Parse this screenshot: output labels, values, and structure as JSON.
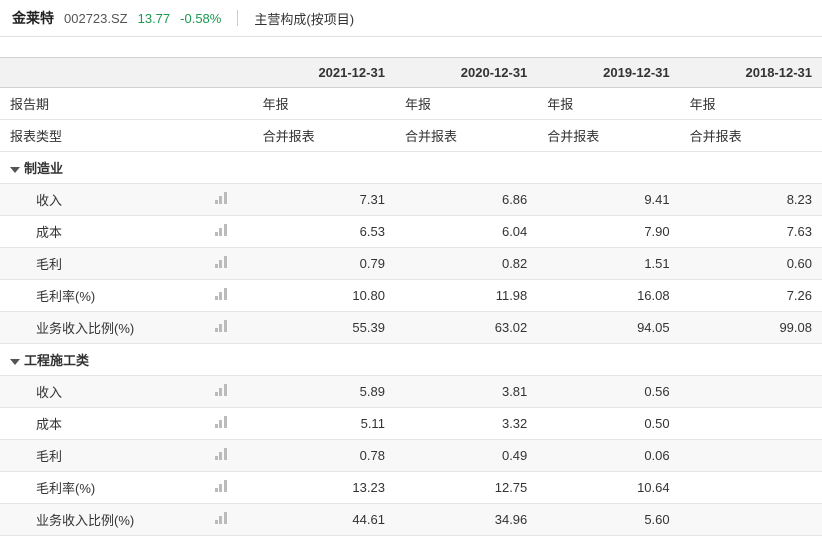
{
  "header": {
    "stock_name": "金莱特",
    "stock_code": "002723.SZ",
    "price": "13.77",
    "price_color": "#1a9850",
    "change": "-0.58%",
    "change_color": "#1a9850",
    "section_title": "主营构成(按项目)"
  },
  "table": {
    "label_header": "",
    "columns": [
      "2021-12-31",
      "2020-12-31",
      "2019-12-31",
      "2018-12-31"
    ],
    "meta_rows": [
      {
        "label": "报告期",
        "values": [
          "年报",
          "年报",
          "年报",
          "年报"
        ]
      },
      {
        "label": "报表类型",
        "values": [
          "合并报表",
          "合并报表",
          "合并报表",
          "合并报表"
        ]
      }
    ],
    "groups": [
      {
        "name": "制造业",
        "metrics": [
          {
            "label": "收入",
            "values": [
              "7.31",
              "6.86",
              "9.41",
              "8.23"
            ]
          },
          {
            "label": "成本",
            "values": [
              "6.53",
              "6.04",
              "7.90",
              "7.63"
            ]
          },
          {
            "label": "毛利",
            "values": [
              "0.79",
              "0.82",
              "1.51",
              "0.60"
            ]
          },
          {
            "label": "毛利率(%)",
            "values": [
              "10.80",
              "11.98",
              "16.08",
              "7.26"
            ]
          },
          {
            "label": "业务收入比例(%)",
            "values": [
              "55.39",
              "63.02",
              "94.05",
              "99.08"
            ]
          }
        ]
      },
      {
        "name": "工程施工类",
        "metrics": [
          {
            "label": "收入",
            "values": [
              "5.89",
              "3.81",
              "0.56",
              ""
            ]
          },
          {
            "label": "成本",
            "values": [
              "5.11",
              "3.32",
              "0.50",
              ""
            ]
          },
          {
            "label": "毛利",
            "values": [
              "0.78",
              "0.49",
              "0.06",
              ""
            ]
          },
          {
            "label": "毛利率(%)",
            "values": [
              "13.23",
              "12.75",
              "10.64",
              ""
            ]
          },
          {
            "label": "业务收入比例(%)",
            "values": [
              "44.61",
              "34.96",
              "5.60",
              ""
            ]
          }
        ]
      }
    ]
  },
  "style": {
    "header_bg": "#f2f2f2",
    "border_color": "#e5e5e5",
    "icon_bar_color": "#bbbbbb"
  }
}
